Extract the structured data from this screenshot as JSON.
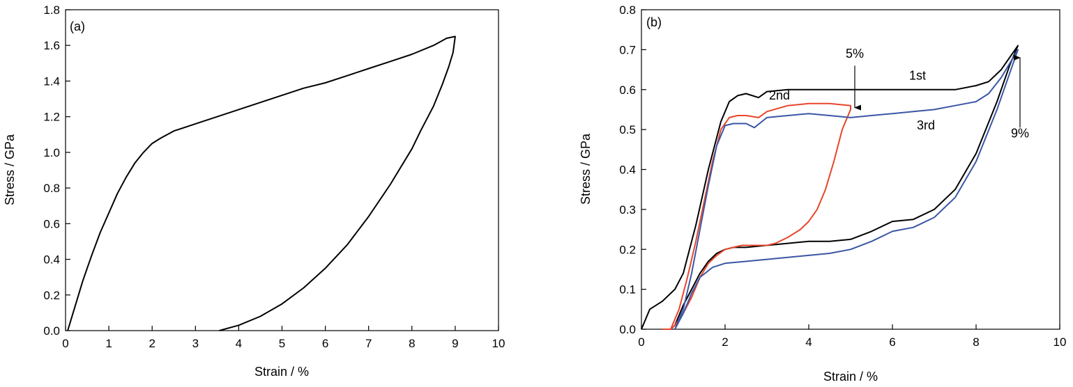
{
  "chart_data": [
    {
      "type": "line",
      "panel_label": "(a)",
      "xlabel": "Strain / %",
      "ylabel": "Stress / GPa",
      "xlim": [
        0,
        10
      ],
      "ylim": [
        0,
        1.8
      ],
      "xticks": [
        0,
        1,
        2,
        3,
        4,
        5,
        6,
        7,
        8,
        9,
        10
      ],
      "xtick_labels": [
        "0",
        "1",
        "2",
        "3",
        "4",
        "5",
        "6",
        "7",
        "8",
        "9",
        "10"
      ],
      "yticks": [
        0,
        0.2,
        0.4,
        0.6,
        0.8,
        1.0,
        1.2,
        1.4,
        1.6,
        1.8
      ],
      "ytick_labels": [
        "0.0",
        "0.2",
        "0.4",
        "0.6",
        "0.8",
        "1.0",
        "1.2",
        "1.4",
        "1.6",
        "1.8"
      ],
      "grid": false,
      "series": [
        {
          "color": "#000000",
          "x": [
            0.05,
            0.2,
            0.4,
            0.6,
            0.8,
            1.0,
            1.2,
            1.4,
            1.6,
            1.8,
            2.0,
            2.2,
            2.5,
            3.0,
            3.5,
            4.0,
            4.5,
            5.0,
            5.5,
            6.0,
            6.5,
            7.0,
            7.5,
            8.0,
            8.5,
            8.8,
            9.0,
            8.95,
            8.85,
            8.7,
            8.5,
            8.2,
            8.0,
            7.5,
            7.0,
            6.5,
            6.0,
            5.5,
            5.0,
            4.5,
            4.0,
            3.55
          ],
          "y": [
            0.0,
            0.12,
            0.28,
            0.42,
            0.55,
            0.66,
            0.77,
            0.86,
            0.94,
            1.0,
            1.05,
            1.08,
            1.12,
            1.16,
            1.2,
            1.24,
            1.28,
            1.32,
            1.36,
            1.39,
            1.43,
            1.47,
            1.51,
            1.55,
            1.6,
            1.64,
            1.65,
            1.56,
            1.48,
            1.38,
            1.26,
            1.12,
            1.02,
            0.82,
            0.64,
            0.48,
            0.35,
            0.24,
            0.15,
            0.08,
            0.03,
            0.0
          ]
        }
      ]
    },
    {
      "type": "line",
      "panel_label": "(b)",
      "xlabel": "Strain / %",
      "ylabel": "Stress / GPa",
      "xlim": [
        0,
        10
      ],
      "ylim": [
        0,
        0.8
      ],
      "xticks": [
        0,
        2,
        4,
        6,
        8,
        10
      ],
      "xtick_labels": [
        "0",
        "2",
        "4",
        "6",
        "8",
        "10"
      ],
      "yticks": [
        0,
        0.1,
        0.2,
        0.3,
        0.4,
        0.5,
        0.6,
        0.7,
        0.8
      ],
      "ytick_labels": [
        "0.0",
        "0.1",
        "0.2",
        "0.3",
        "0.4",
        "0.5",
        "0.6",
        "0.7",
        "0.8"
      ],
      "grid": false,
      "series": [
        {
          "name": "1st",
          "color": "#000000",
          "x": [
            0.0,
            0.2,
            0.5,
            0.8,
            1.0,
            1.3,
            1.6,
            1.9,
            2.1,
            2.3,
            2.5,
            2.8,
            3.0,
            3.5,
            4.0,
            4.5,
            5.0,
            5.5,
            6.0,
            6.5,
            7.0,
            7.5,
            8.0,
            8.3,
            8.6,
            9.0,
            8.8,
            8.5,
            8.0,
            7.5,
            7.0,
            6.5,
            6.0,
            5.5,
            5.0,
            4.5,
            4.0,
            3.5,
            3.0,
            2.5,
            2.2,
            2.0,
            1.8,
            1.6,
            1.4,
            1.2,
            1.0,
            0.8,
            0.7
          ],
          "y": [
            0.0,
            0.05,
            0.07,
            0.1,
            0.14,
            0.26,
            0.4,
            0.52,
            0.57,
            0.585,
            0.59,
            0.58,
            0.595,
            0.6,
            0.6,
            0.6,
            0.6,
            0.6,
            0.6,
            0.6,
            0.6,
            0.6,
            0.61,
            0.62,
            0.65,
            0.71,
            0.66,
            0.57,
            0.44,
            0.35,
            0.3,
            0.275,
            0.27,
            0.245,
            0.225,
            0.22,
            0.22,
            0.215,
            0.21,
            0.205,
            0.205,
            0.2,
            0.19,
            0.17,
            0.14,
            0.1,
            0.06,
            0.01,
            0.0
          ]
        },
        {
          "name": "2nd",
          "color": "#e8452a",
          "x": [
            0.5,
            0.7,
            0.9,
            1.1,
            1.3,
            1.5,
            1.7,
            1.9,
            2.1,
            2.3,
            2.5,
            2.8,
            3.0,
            3.5,
            4.0,
            4.5,
            5.0,
            5.0,
            4.8,
            4.6,
            4.4,
            4.2,
            4.0,
            3.8,
            3.5,
            3.2,
            3.0,
            2.7,
            2.4,
            2.2,
            2.0,
            1.8,
            1.6,
            1.4,
            1.2,
            1.0,
            0.8,
            0.7
          ],
          "y": [
            0.0,
            0.0,
            0.05,
            0.13,
            0.22,
            0.32,
            0.42,
            0.5,
            0.53,
            0.535,
            0.535,
            0.53,
            0.545,
            0.56,
            0.565,
            0.565,
            0.56,
            0.55,
            0.5,
            0.42,
            0.35,
            0.3,
            0.27,
            0.25,
            0.23,
            0.215,
            0.21,
            0.21,
            0.21,
            0.205,
            0.2,
            0.185,
            0.165,
            0.13,
            0.08,
            0.04,
            0.01,
            0.0
          ]
        },
        {
          "name": "3rd",
          "color": "#3a56a5",
          "x": [
            0.8,
            1.0,
            1.2,
            1.4,
            1.6,
            1.8,
            2.0,
            2.2,
            2.5,
            2.7,
            3.0,
            3.5,
            4.0,
            4.5,
            5.0,
            5.5,
            6.0,
            6.5,
            7.0,
            7.5,
            8.0,
            8.3,
            8.6,
            9.0,
            8.8,
            8.5,
            8.0,
            7.5,
            7.0,
            6.5,
            6.0,
            5.5,
            5.0,
            4.5,
            4.0,
            3.5,
            3.0,
            2.5,
            2.0,
            1.7,
            1.4,
            1.2,
            1.0,
            0.8
          ],
          "y": [
            0.0,
            0.05,
            0.14,
            0.25,
            0.36,
            0.46,
            0.51,
            0.515,
            0.515,
            0.505,
            0.53,
            0.535,
            0.54,
            0.535,
            0.53,
            0.535,
            0.54,
            0.545,
            0.55,
            0.56,
            0.57,
            0.59,
            0.63,
            0.7,
            0.64,
            0.55,
            0.42,
            0.33,
            0.28,
            0.255,
            0.245,
            0.22,
            0.2,
            0.19,
            0.185,
            0.18,
            0.175,
            0.17,
            0.165,
            0.155,
            0.13,
            0.09,
            0.04,
            0.0
          ]
        }
      ],
      "annotations": [
        {
          "text": "1st",
          "x": 6.6,
          "y": 0.625
        },
        {
          "text": "2nd",
          "x": 3.3,
          "y": 0.575
        },
        {
          "text": "3rd",
          "x": 6.8,
          "y": 0.5
        },
        {
          "text": "5%",
          "x": 5.1,
          "y": 0.68
        },
        {
          "text": "9%",
          "x": 9.05,
          "y": 0.48
        }
      ],
      "arrows": [
        {
          "label": "5%",
          "from": [
            5.1,
            0.66
          ],
          "to": [
            5.1,
            0.555
          ],
          "direction": "down"
        },
        {
          "label": "9%",
          "from": [
            9.05,
            0.505
          ],
          "to": [
            9.05,
            0.68
          ],
          "direction": "up"
        }
      ]
    }
  ]
}
